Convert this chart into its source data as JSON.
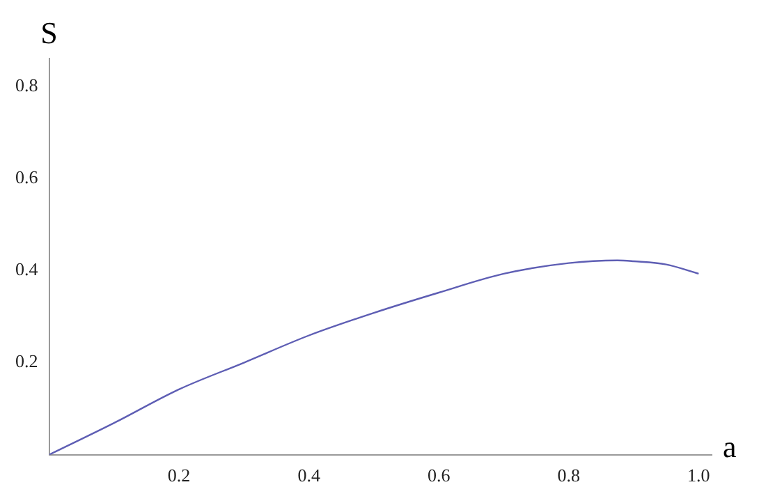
{
  "chart_data": {
    "type": "line",
    "xlabel": "a",
    "ylabel": "S",
    "xlim": [
      0,
      1.02
    ],
    "ylim": [
      0,
      0.86
    ],
    "xticks": [
      0.2,
      0.4,
      0.6,
      0.8,
      {
        "value": 1,
        "label": "1.0"
      }
    ],
    "yticks": [
      0.2,
      0.4,
      0.6,
      0.8
    ],
    "grid": false,
    "legend": false,
    "marker": "none",
    "line_style": "solid",
    "series": [
      {
        "color": "#5e5eb4",
        "x": [
          0,
          0.1,
          0.2,
          0.3,
          0.4,
          0.5,
          0.6,
          0.7,
          0.8,
          0.875,
          0.9,
          0.95,
          1.0
        ],
        "values": [
          0,
          0.069,
          0.142,
          0.2,
          0.259,
          0.308,
          0.352,
          0.393,
          0.416,
          0.422,
          0.42,
          0.413,
          0.393
        ]
      }
    ]
  }
}
